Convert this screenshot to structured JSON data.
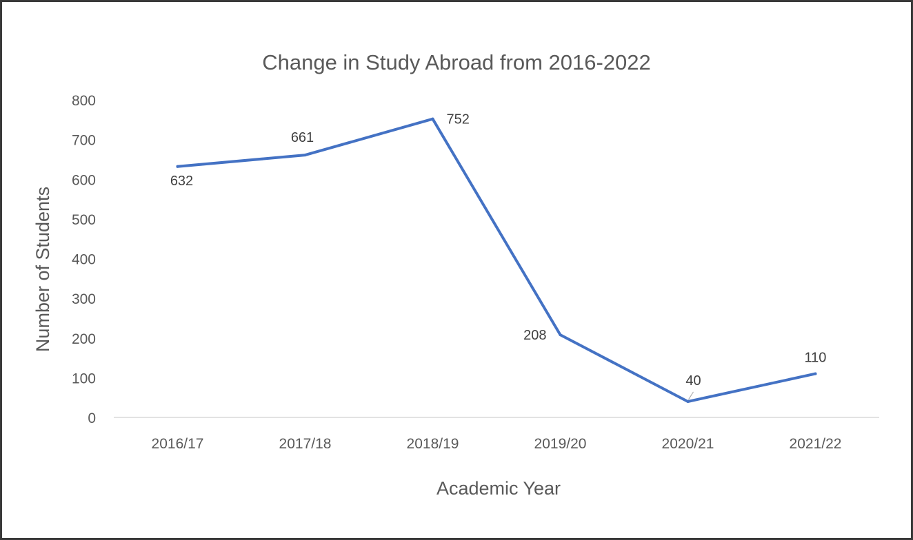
{
  "chart_data": {
    "type": "line",
    "title": "Change in Study Abroad from 2016-2022",
    "xlabel": "Academic Year",
    "ylabel": "Number of Students",
    "categories": [
      "2016/17",
      "2017/18",
      "2018/19",
      "2019/20",
      "2020/21",
      "2021/22"
    ],
    "series": [
      {
        "values": [
          632,
          661,
          752,
          208,
          40,
          110
        ],
        "color": "#4472C4"
      }
    ],
    "ylim": [
      0,
      800
    ],
    "yticks": [
      0,
      100,
      200,
      300,
      400,
      500,
      600,
      700,
      800
    ],
    "ytick_labels": [
      "0",
      "100",
      "200",
      "300",
      "400",
      "500",
      "600",
      "700",
      "800"
    ],
    "data_labels": [
      "632",
      "661",
      "752",
      "208",
      "40",
      "110"
    ],
    "grid": false,
    "legend": "none",
    "axis_line_color": "#d9d9d9",
    "text_color": "#595959"
  }
}
